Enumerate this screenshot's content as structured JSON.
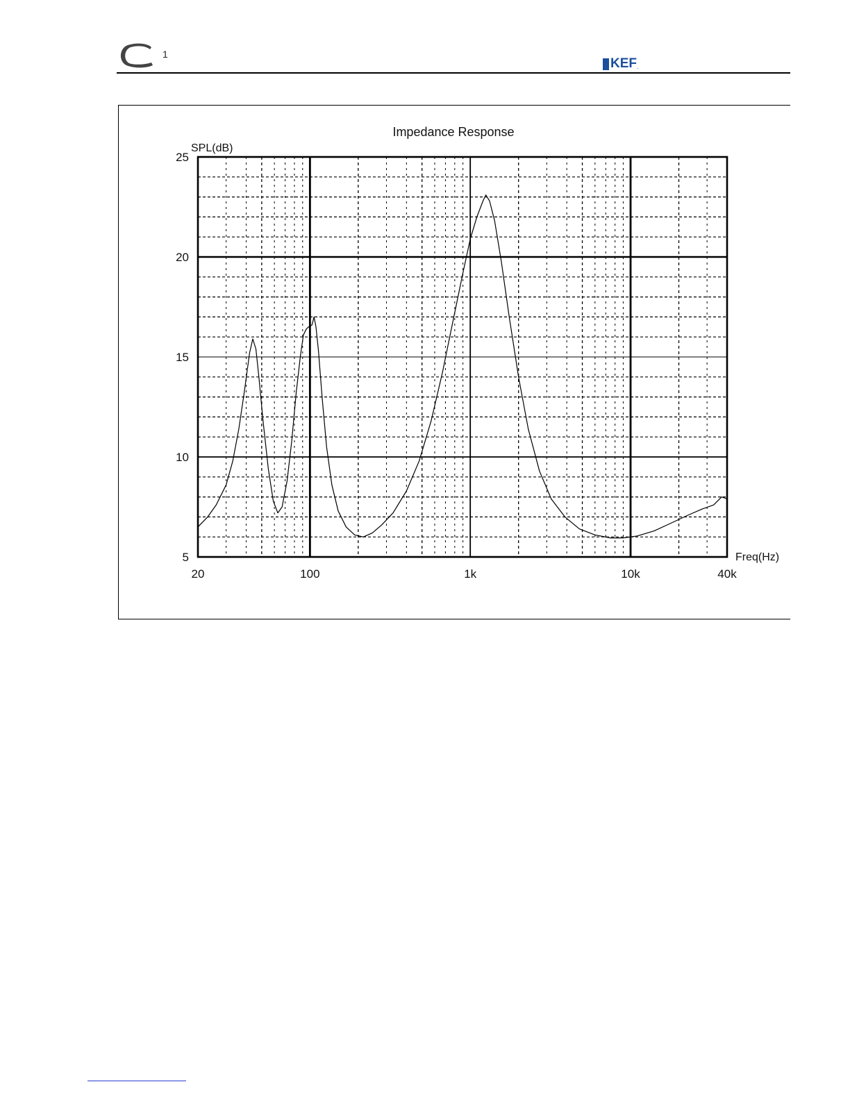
{
  "header": {
    "logo_letter": "C",
    "model_number": "1",
    "brand": "KEF",
    "brand_mark": "."
  },
  "chart_data": {
    "type": "line",
    "title": "Impedance Response",
    "xlabel": "Freq(Hz)",
    "ylabel": "SPL(dB)",
    "x_scale": "log",
    "xlim": [
      20,
      40000
    ],
    "ylim": [
      5,
      25
    ],
    "grid": true,
    "x_ticks": [
      {
        "value": 20,
        "label": "20"
      },
      {
        "value": 100,
        "label": "100"
      },
      {
        "value": 1000,
        "label": "1k"
      },
      {
        "value": 10000,
        "label": "10k"
      },
      {
        "value": 40000,
        "label": "40k"
      }
    ],
    "y_ticks": [
      {
        "value": 5,
        "label": "5"
      },
      {
        "value": 10,
        "label": "10"
      },
      {
        "value": 15,
        "label": "15"
      },
      {
        "value": 20,
        "label": "20"
      },
      {
        "value": 25,
        "label": "25"
      }
    ],
    "series": [
      {
        "color": "#000000",
        "points": [
          [
            20,
            6.5
          ],
          [
            23,
            7.0
          ],
          [
            26,
            7.6
          ],
          [
            30,
            8.6
          ],
          [
            33,
            9.8
          ],
          [
            36,
            11.4
          ],
          [
            39,
            13.3
          ],
          [
            42,
            15.2
          ],
          [
            44,
            15.9
          ],
          [
            46,
            15.4
          ],
          [
            48,
            14.0
          ],
          [
            51,
            11.8
          ],
          [
            55,
            9.4
          ],
          [
            59,
            7.8
          ],
          [
            63,
            7.2
          ],
          [
            67,
            7.5
          ],
          [
            72,
            8.8
          ],
          [
            77,
            10.8
          ],
          [
            82,
            13.2
          ],
          [
            87,
            15.0
          ],
          [
            91,
            16.1
          ],
          [
            95,
            16.4
          ],
          [
            98,
            16.5
          ],
          [
            103,
            16.6
          ],
          [
            106,
            17.0
          ],
          [
            109,
            16.5
          ],
          [
            113,
            15.3
          ],
          [
            119,
            13.0
          ],
          [
            127,
            10.5
          ],
          [
            137,
            8.6
          ],
          [
            150,
            7.3
          ],
          [
            168,
            6.5
          ],
          [
            190,
            6.1
          ],
          [
            215,
            6.0
          ],
          [
            245,
            6.2
          ],
          [
            280,
            6.6
          ],
          [
            330,
            7.2
          ],
          [
            400,
            8.3
          ],
          [
            480,
            9.8
          ],
          [
            570,
            11.8
          ],
          [
            670,
            14.2
          ],
          [
            780,
            16.8
          ],
          [
            900,
            19.2
          ],
          [
            1000,
            20.9
          ],
          [
            1100,
            22.0
          ],
          [
            1200,
            22.8
          ],
          [
            1250,
            23.1
          ],
          [
            1320,
            22.8
          ],
          [
            1420,
            21.8
          ],
          [
            1560,
            19.8
          ],
          [
            1750,
            17.0
          ],
          [
            2000,
            14.0
          ],
          [
            2300,
            11.4
          ],
          [
            2700,
            9.3
          ],
          [
            3200,
            7.9
          ],
          [
            3900,
            7.0
          ],
          [
            4800,
            6.4
          ],
          [
            6000,
            6.1
          ],
          [
            7500,
            5.95
          ],
          [
            9000,
            5.95
          ],
          [
            11000,
            6.05
          ],
          [
            14000,
            6.3
          ],
          [
            18000,
            6.7
          ],
          [
            23000,
            7.1
          ],
          [
            28000,
            7.4
          ],
          [
            33000,
            7.6
          ],
          [
            37000,
            8.0
          ],
          [
            40000,
            7.9
          ]
        ]
      }
    ]
  }
}
